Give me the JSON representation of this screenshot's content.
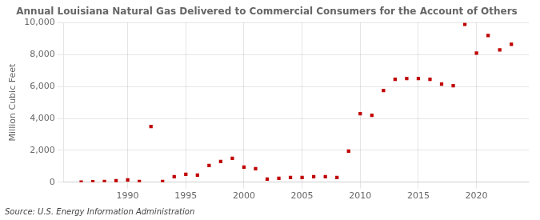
{
  "chart_data": {
    "type": "scatter",
    "title": "Annual Louisiana Natural Gas Delivered to Commercial Consumers for the Account of Others",
    "ylabel": "Million Cubic Feet",
    "annotation": "Source: U.S. Energy Information Administration",
    "x": [
      1986,
      1987,
      1988,
      1989,
      1990,
      1991,
      1992,
      1993,
      1994,
      1995,
      1996,
      1997,
      1998,
      1999,
      2000,
      2001,
      2002,
      2003,
      2004,
      2005,
      2006,
      2007,
      2008,
      2009,
      2010,
      2011,
      2012,
      2013,
      2014,
      2015,
      2016,
      2017,
      2018,
      2019,
      2020,
      2021,
      2022,
      2023
    ],
    "values": [
      10,
      30,
      50,
      100,
      150,
      50,
      3500,
      50,
      350,
      500,
      450,
      1050,
      1300,
      1500,
      950,
      850,
      200,
      250,
      300,
      300,
      350,
      350,
      300,
      1950,
      4300,
      4200,
      5750,
      6450,
      6500,
      6500,
      6450,
      6150,
      6050,
      9900,
      8100,
      9200,
      8300,
      8650
    ],
    "color": "#c00000",
    "marker": "square",
    "xlim": [
      1984.5,
      2024.5
    ],
    "xticks": [
      1990,
      1995,
      2000,
      2005,
      2010,
      2015,
      2020
    ],
    "ylim": [
      0,
      10000
    ],
    "yticks": [
      0,
      {
        "value": 2000,
        "label": "2,000"
      },
      {
        "value": 4000,
        "label": "4,000"
      },
      {
        "value": 6000,
        "label": "6,000"
      },
      {
        "value": 8000,
        "label": "8,000"
      },
      {
        "value": 10000,
        "label": "10,000"
      }
    ],
    "grid": true
  }
}
